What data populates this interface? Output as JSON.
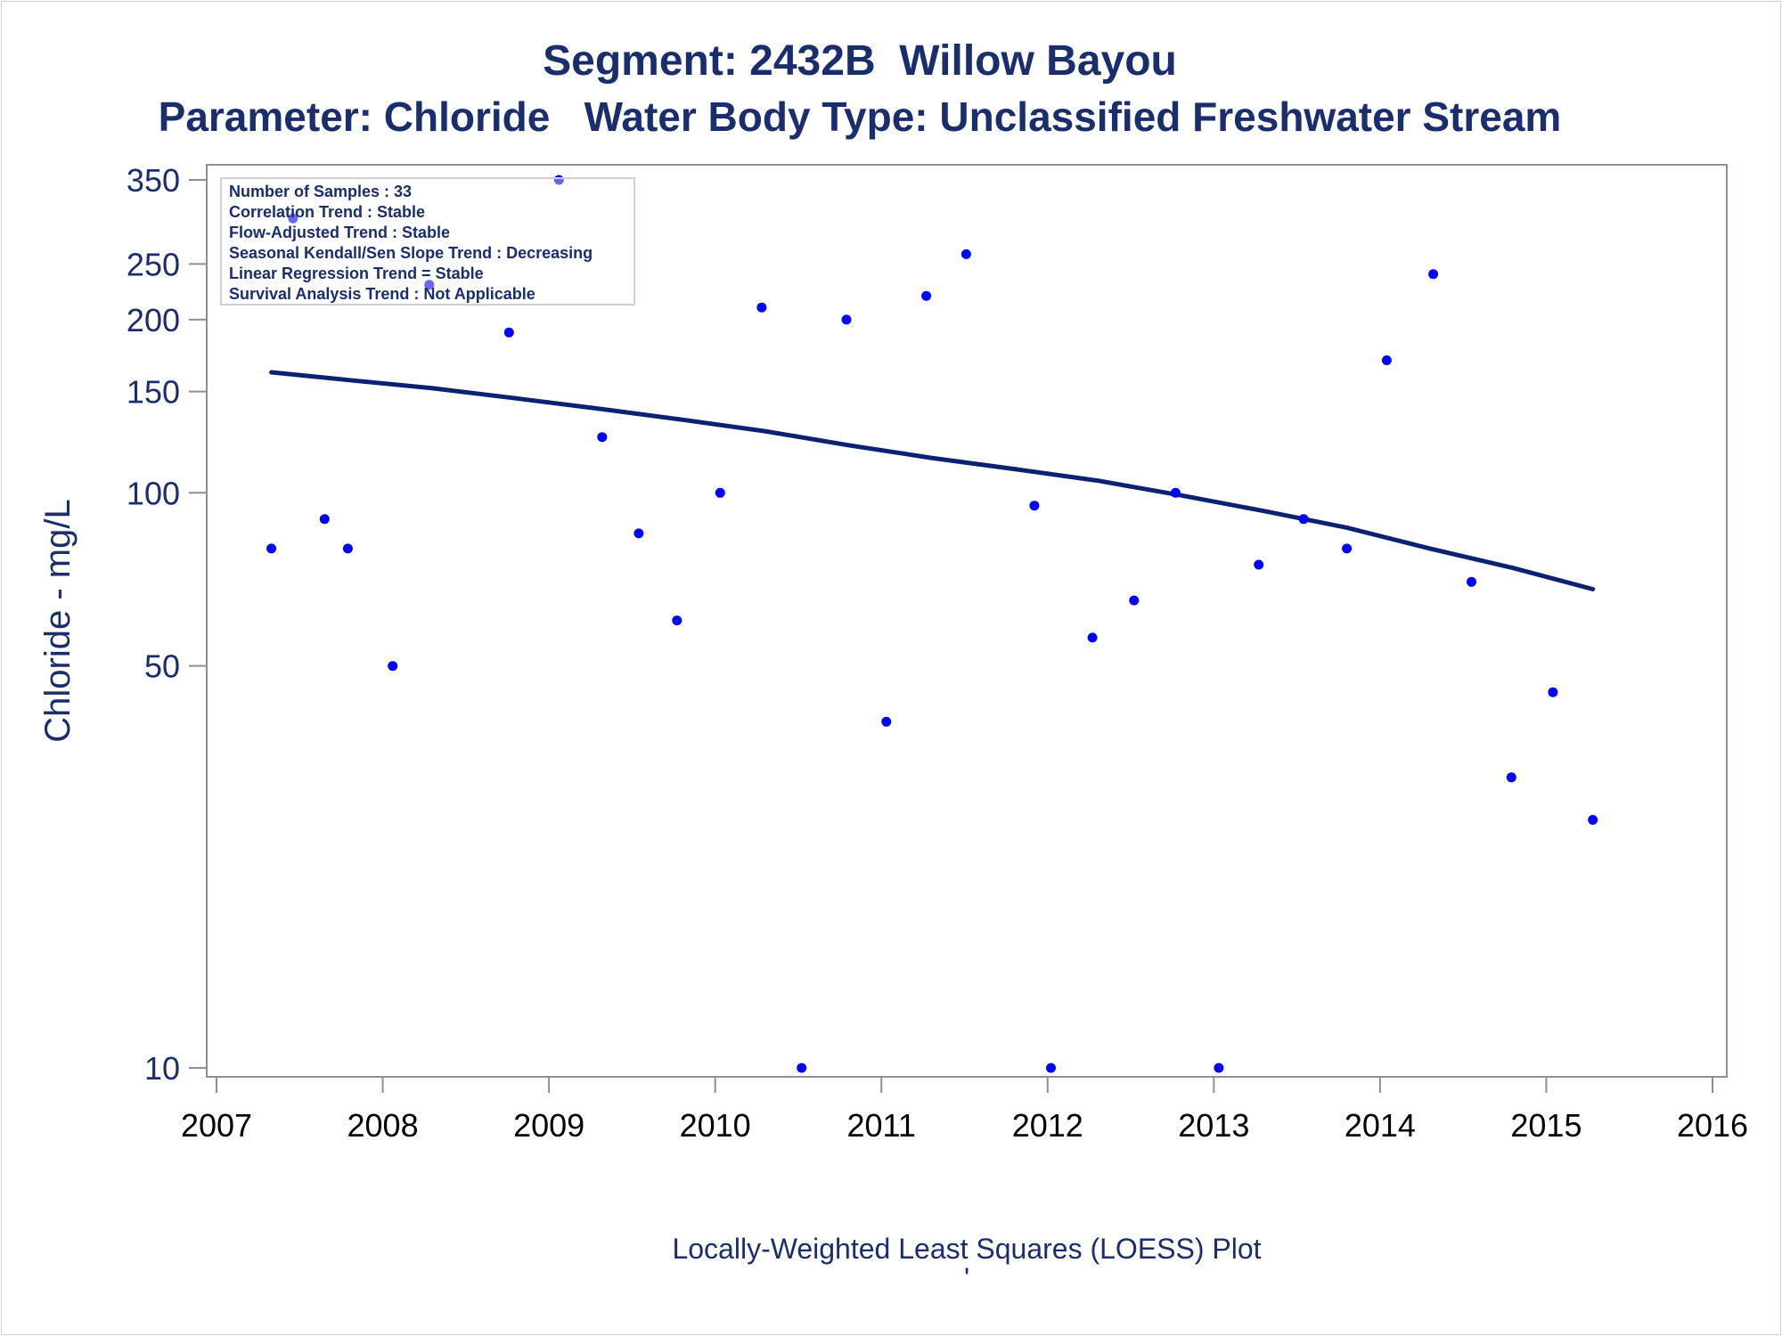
{
  "chart_data": {
    "type": "scatter",
    "title": "Segment: 2432B  Willow Bayou",
    "subtitle": "Parameter: Chloride   Water Body Type: Unclassified Freshwater Stream",
    "xlabel": "",
    "ylabel": "Chloride - mg/L",
    "yscale": "log",
    "xlim": [
      2007,
      2016
    ],
    "ylim": [
      10,
      350
    ],
    "x_ticks": [
      2007,
      2008,
      2009,
      2010,
      2011,
      2012,
      2013,
      2014,
      2015,
      2016
    ],
    "y_ticks": [
      10,
      50,
      100,
      150,
      200,
      250,
      350
    ],
    "grid": false,
    "colors": {
      "points": "#0000ff",
      "trend": "#0a2270",
      "text": "#1a2e6e",
      "axis": "#8a8f99"
    },
    "stats_box": [
      "Number of Samples : 33",
      "Correlation Trend : Stable",
      "Flow-Adjusted Trend : Stable",
      "Seasonal Kendall/Sen Slope Trend : Decreasing",
      "Linear Regression Trend = Stable",
      "Survival Analysis Trend : Not Applicable"
    ],
    "series": [
      {
        "type": "scatter",
        "points": [
          [
            2007.33,
            80
          ],
          [
            2007.46,
            300
          ],
          [
            2007.65,
            90
          ],
          [
            2007.79,
            80
          ],
          [
            2008.06,
            50
          ],
          [
            2008.28,
            230
          ],
          [
            2008.76,
            190
          ],
          [
            2009.06,
            350
          ],
          [
            2009.32,
            125
          ],
          [
            2009.54,
            85
          ],
          [
            2009.77,
            60
          ],
          [
            2010.03,
            100
          ],
          [
            2010.28,
            210
          ],
          [
            2010.52,
            10
          ],
          [
            2010.79,
            200
          ],
          [
            2011.03,
            40
          ],
          [
            2011.27,
            220
          ],
          [
            2011.51,
            260
          ],
          [
            2011.92,
            95
          ],
          [
            2012.02,
            10
          ],
          [
            2012.27,
            56
          ],
          [
            2012.52,
            65
          ],
          [
            2012.77,
            100
          ],
          [
            2013.03,
            10
          ],
          [
            2013.27,
            75
          ],
          [
            2013.54,
            90
          ],
          [
            2013.8,
            80
          ],
          [
            2014.04,
            170
          ],
          [
            2014.32,
            240
          ],
          [
            2014.55,
            70
          ],
          [
            2014.79,
            32
          ],
          [
            2015.04,
            45
          ],
          [
            2015.28,
            27
          ]
        ]
      },
      {
        "type": "line",
        "points": [
          [
            2007.33,
            162
          ],
          [
            2007.8,
            157
          ],
          [
            2008.3,
            152
          ],
          [
            2008.8,
            146
          ],
          [
            2009.3,
            140
          ],
          [
            2009.8,
            134
          ],
          [
            2010.3,
            128
          ],
          [
            2010.8,
            121
          ],
          [
            2011.3,
            115
          ],
          [
            2011.8,
            110
          ],
          [
            2012.3,
            105
          ],
          [
            2012.8,
            99
          ],
          [
            2013.3,
            93
          ],
          [
            2013.8,
            87
          ],
          [
            2014.3,
            80
          ],
          [
            2014.8,
            74
          ],
          [
            2015.28,
            68
          ]
        ]
      }
    ]
  },
  "footer": {
    "plot_label": "Locally-Weighted Least Squares (LOESS) Plot",
    "mark": "'"
  }
}
